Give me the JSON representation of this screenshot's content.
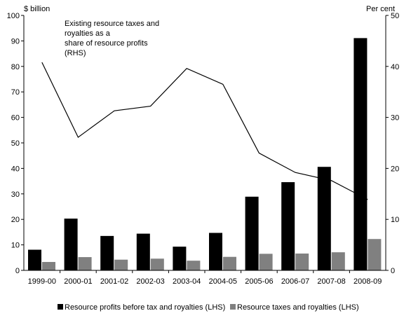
{
  "chart_data": {
    "type": "bar",
    "categories": [
      "1999-00",
      "2000-01",
      "2001-02",
      "2002-03",
      "2003-04",
      "2004-05",
      "2005-06",
      "2006-07",
      "2007-08",
      "2008-09"
    ],
    "series": [
      {
        "name": "Resource profits before tax and royalties (LHS)",
        "type": "bar",
        "axis": "left",
        "color": "#000000",
        "values": [
          8.1,
          20.3,
          13.5,
          14.4,
          9.3,
          14.7,
          28.9,
          34.6,
          40.6,
          91.1
        ]
      },
      {
        "name": "Resource taxes and royalties (LHS)",
        "type": "bar",
        "axis": "left",
        "color": "#808080",
        "values": [
          3.3,
          5.2,
          4.2,
          4.6,
          3.8,
          5.3,
          6.5,
          6.6,
          7.1,
          12.3
        ]
      },
      {
        "name": "Existing resource taxes and royalties as a share of resource profits (RHS)",
        "type": "line",
        "axis": "right",
        "color": "#000000",
        "values": [
          40.8,
          26.1,
          31.3,
          32.2,
          39.6,
          36.5,
          23.0,
          19.2,
          17.6,
          13.9
        ]
      }
    ],
    "left_axis": {
      "label": "$ billion",
      "ylim": [
        0,
        100
      ],
      "ticks": [
        "0",
        "10",
        "20",
        "30",
        "40",
        "50",
        "60",
        "70",
        "80",
        "90",
        "100"
      ]
    },
    "right_axis": {
      "label": "Per cent",
      "ylim": [
        0,
        50
      ],
      "ticks": [
        "0",
        "10",
        "20",
        "30",
        "40",
        "50"
      ]
    },
    "annotation": [
      "Existing resource taxes and",
      "royalties as a",
      "share of resource profits",
      "(RHS)"
    ],
    "legend": {
      "placement": "bottom",
      "items": [
        "Resource profits before tax and royalties (LHS)",
        "Resource taxes and royalties (LHS)"
      ]
    },
    "grid": false
  }
}
